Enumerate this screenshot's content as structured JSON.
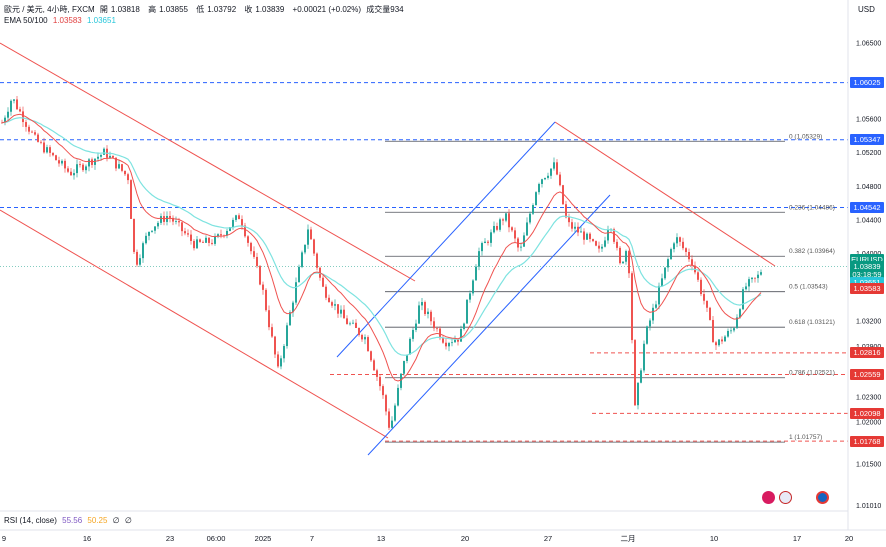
{
  "header": {
    "symbol": "歐元 / 美元, 4小時, FXCM",
    "open_label": "開",
    "open": "1.03818",
    "high_label": "高",
    "high": "1.03855",
    "low_label": "低",
    "low": "1.03792",
    "close_label": "收",
    "close": "1.03839",
    "change": "+0.00021 (+0.02%)",
    "volume": "成交量934",
    "ema_label": "EMA 50/100",
    "ema50": "1.03583",
    "ema100": "1.03651"
  },
  "price_axis": {
    "currency": "USD"
  },
  "rsi": {
    "label": "RSI (14, close)",
    "value1": "55.56",
    "value2": "50.25",
    "extra1": "∅",
    "extra2": "∅"
  },
  "colors": {
    "up": "#26a69a",
    "down": "#ef5350",
    "ema50": "#ef5350",
    "ema100": "#7ee3e0",
    "channel": "#ef5350",
    "uptrend": "#2962ff",
    "level_blue": "#2962ff",
    "fib_line": "#131722",
    "level_red": "#ef5350",
    "axis_text": "#131722"
  },
  "chart_data": {
    "type": "candlestick",
    "ylim": [
      1.0101,
      1.0665
    ],
    "grid": false,
    "y_ticks": [
      "1.06500",
      "1.06000",
      "1.05600",
      "1.05200",
      "1.04800",
      "1.04400",
      "1.04000",
      "1.03600",
      "1.03200",
      "1.02900",
      "1.02300",
      "1.02000",
      "1.01500",
      "1.01010"
    ],
    "x_ticks": [
      "9",
      "16",
      "23",
      "06:00",
      "2025",
      "7",
      "13",
      "20",
      "27",
      "二月",
      "10",
      "17",
      "20"
    ],
    "horizontal_levels": [
      {
        "price": "1.06025",
        "style": "dashed",
        "color": "blue"
      },
      {
        "price": "1.05347",
        "style": "dashed",
        "color": "blue"
      },
      {
        "price": "1.04542",
        "style": "dashed",
        "color": "blue"
      },
      {
        "price": "1.02816",
        "style": "dashed",
        "color": "red"
      },
      {
        "price": "1.02559",
        "style": "dashed",
        "color": "red"
      },
      {
        "price": "1.02098",
        "style": "dashed",
        "color": "red"
      },
      {
        "price": "1.01768",
        "style": "dashed",
        "color": "red"
      }
    ],
    "fib_levels": [
      {
        "ratio": "0",
        "price": "1.05329",
        "label": "0 (1.05329)"
      },
      {
        "ratio": "0.236",
        "price": "1.04486",
        "label": "0.236 (1.04486)"
      },
      {
        "ratio": "0.382",
        "price": "1.03964",
        "label": "0.382 (1.03964)"
      },
      {
        "ratio": "0.5",
        "price": "1.03543",
        "label": "0.5 (1.03543)"
      },
      {
        "ratio": "0.618",
        "price": "1.03121",
        "label": "0.618 (1.03121)"
      },
      {
        "ratio": "0.786",
        "price": "1.02521",
        "label": "0.786 (1.02521)"
      },
      {
        "ratio": "1",
        "price": "1.01757",
        "label": "1 (1.01757)"
      }
    ],
    "price_tags": [
      {
        "text": "1.06025",
        "price": 1.06025,
        "color": "#2962ff"
      },
      {
        "text": "1.05347",
        "price": 1.05347,
        "color": "#2962ff"
      },
      {
        "text": "1.04542",
        "price": 1.04542,
        "color": "#2962ff"
      },
      {
        "text": "EURUSD",
        "price": 1.03925,
        "color": "#089981"
      },
      {
        "text": "1.03839",
        "price": 1.03839,
        "color": "#089981"
      },
      {
        "text": "03:18:59",
        "price": 1.03745,
        "color": "#089981"
      },
      {
        "text": "1.03651",
        "price": 1.03651,
        "color": "#26c6da"
      },
      {
        "text": "1.03583",
        "price": 1.03583,
        "color": "#e53935"
      },
      {
        "text": "1.02816",
        "price": 1.02816,
        "color": "#e53935"
      },
      {
        "text": "1.02559",
        "price": 1.02559,
        "color": "#e53935"
      },
      {
        "text": "1.02098",
        "price": 1.02098,
        "color": "#e53935"
      },
      {
        "text": "1.01768",
        "price": 1.01768,
        "color": "#e53935"
      }
    ],
    "ohlc_last": {
      "open": 1.03818,
      "high": 1.03855,
      "low": 1.03792,
      "close": 1.03839
    },
    "current_price": 1.03839,
    "ema50_last": 1.03583,
    "ema100_last": 1.03651
  }
}
